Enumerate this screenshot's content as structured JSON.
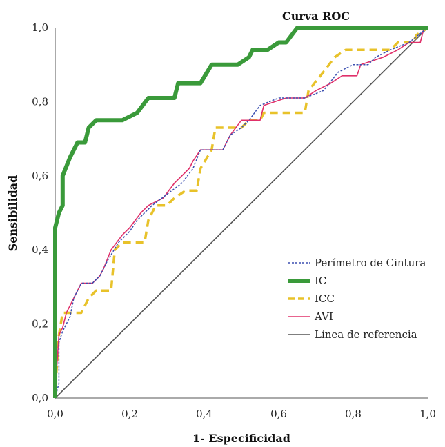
{
  "chart_data": {
    "type": "line",
    "title": "Curva ROC",
    "xlabel": "1- Especificidad",
    "ylabel": "Sensibilidad",
    "xlim": [
      0,
      1
    ],
    "ylim": [
      0,
      1
    ],
    "xticks": [
      "0,0",
      "0,2",
      "0,4",
      "0,6",
      "0,8",
      "1,0"
    ],
    "yticks": [
      "0,0",
      "0,2",
      "0,4",
      "0,6",
      "0,8",
      "1,0"
    ],
    "grid": false,
    "legend_position": "bottom-right",
    "series": [
      {
        "name": "Perímetro de Cintura",
        "color": "#3b4fb0",
        "style": "dotted",
        "points": [
          [
            0,
            0
          ],
          [
            0.01,
            0.04
          ],
          [
            0.01,
            0.15
          ],
          [
            0.02,
            0.18
          ],
          [
            0.03,
            0.2
          ],
          [
            0.04,
            0.22
          ],
          [
            0.05,
            0.27
          ],
          [
            0.07,
            0.31
          ],
          [
            0.1,
            0.31
          ],
          [
            0.12,
            0.33
          ],
          [
            0.14,
            0.37
          ],
          [
            0.17,
            0.42
          ],
          [
            0.2,
            0.45
          ],
          [
            0.22,
            0.48
          ],
          [
            0.26,
            0.52
          ],
          [
            0.3,
            0.55
          ],
          [
            0.34,
            0.58
          ],
          [
            0.37,
            0.62
          ],
          [
            0.39,
            0.67
          ],
          [
            0.45,
            0.67
          ],
          [
            0.47,
            0.71
          ],
          [
            0.5,
            0.73
          ],
          [
            0.52,
            0.75
          ],
          [
            0.55,
            0.79
          ],
          [
            0.6,
            0.81
          ],
          [
            0.67,
            0.81
          ],
          [
            0.72,
            0.83
          ],
          [
            0.76,
            0.88
          ],
          [
            0.8,
            0.9
          ],
          [
            0.84,
            0.9
          ],
          [
            0.86,
            0.92
          ],
          [
            0.9,
            0.94
          ],
          [
            0.95,
            0.96
          ],
          [
            1,
            1
          ]
        ]
      },
      {
        "name": "IC",
        "color": "#3a9a3a",
        "style": "solid",
        "points": [
          [
            0,
            0
          ],
          [
            0,
            0.46
          ],
          [
            0.01,
            0.5
          ],
          [
            0.02,
            0.52
          ],
          [
            0.02,
            0.6
          ],
          [
            0.04,
            0.65
          ],
          [
            0.06,
            0.69
          ],
          [
            0.08,
            0.69
          ],
          [
            0.09,
            0.73
          ],
          [
            0.11,
            0.75
          ],
          [
            0.18,
            0.75
          ],
          [
            0.22,
            0.77
          ],
          [
            0.25,
            0.81
          ],
          [
            0.32,
            0.81
          ],
          [
            0.33,
            0.85
          ],
          [
            0.39,
            0.85
          ],
          [
            0.42,
            0.9
          ],
          [
            0.49,
            0.9
          ],
          [
            0.52,
            0.92
          ],
          [
            0.53,
            0.94
          ],
          [
            0.57,
            0.94
          ],
          [
            0.6,
            0.96
          ],
          [
            0.62,
            0.96
          ],
          [
            0.65,
            1
          ],
          [
            1,
            1
          ]
        ]
      },
      {
        "name": "ICC",
        "color": "#e8c22a",
        "style": "dashed",
        "points": [
          [
            0,
            0
          ],
          [
            0,
            0.02
          ],
          [
            0.01,
            0.17
          ],
          [
            0.02,
            0.23
          ],
          [
            0.07,
            0.23
          ],
          [
            0.09,
            0.27
          ],
          [
            0.11,
            0.29
          ],
          [
            0.15,
            0.29
          ],
          [
            0.16,
            0.4
          ],
          [
            0.18,
            0.42
          ],
          [
            0.24,
            0.42
          ],
          [
            0.25,
            0.48
          ],
          [
            0.27,
            0.52
          ],
          [
            0.3,
            0.52
          ],
          [
            0.32,
            0.54
          ],
          [
            0.35,
            0.56
          ],
          [
            0.38,
            0.56
          ],
          [
            0.39,
            0.62
          ],
          [
            0.42,
            0.67
          ],
          [
            0.43,
            0.73
          ],
          [
            0.5,
            0.73
          ],
          [
            0.52,
            0.75
          ],
          [
            0.55,
            0.75
          ],
          [
            0.56,
            0.77
          ],
          [
            0.67,
            0.77
          ],
          [
            0.68,
            0.83
          ],
          [
            0.72,
            0.88
          ],
          [
            0.75,
            0.92
          ],
          [
            0.78,
            0.94
          ],
          [
            0.9,
            0.94
          ],
          [
            0.92,
            0.96
          ],
          [
            0.96,
            0.96
          ],
          [
            0.97,
            0.98
          ],
          [
            1,
            1
          ]
        ]
      },
      {
        "name": "AVI",
        "color": "#e0306a",
        "style": "solid-thin",
        "points": [
          [
            0,
            0
          ],
          [
            0,
            0.02
          ],
          [
            0.01,
            0.17
          ],
          [
            0.02,
            0.19
          ],
          [
            0.03,
            0.23
          ],
          [
            0.05,
            0.27
          ],
          [
            0.07,
            0.31
          ],
          [
            0.1,
            0.31
          ],
          [
            0.12,
            0.33
          ],
          [
            0.13,
            0.35
          ],
          [
            0.15,
            0.4
          ],
          [
            0.18,
            0.44
          ],
          [
            0.2,
            0.46
          ],
          [
            0.23,
            0.5
          ],
          [
            0.25,
            0.52
          ],
          [
            0.29,
            0.54
          ],
          [
            0.32,
            0.58
          ],
          [
            0.34,
            0.6
          ],
          [
            0.36,
            0.62
          ],
          [
            0.37,
            0.64
          ],
          [
            0.39,
            0.67
          ],
          [
            0.45,
            0.67
          ],
          [
            0.47,
            0.71
          ],
          [
            0.5,
            0.75
          ],
          [
            0.55,
            0.75
          ],
          [
            0.56,
            0.79
          ],
          [
            0.62,
            0.81
          ],
          [
            0.67,
            0.81
          ],
          [
            0.7,
            0.83
          ],
          [
            0.74,
            0.85
          ],
          [
            0.77,
            0.87
          ],
          [
            0.81,
            0.87
          ],
          [
            0.82,
            0.9
          ],
          [
            0.88,
            0.92
          ],
          [
            0.92,
            0.94
          ],
          [
            0.95,
            0.96
          ],
          [
            0.98,
            0.96
          ],
          [
            0.99,
            1
          ],
          [
            1,
            1
          ]
        ]
      },
      {
        "name": "Línea de referencia",
        "color": "#555555",
        "style": "solid-thin",
        "points": [
          [
            0,
            0
          ],
          [
            1,
            1
          ]
        ]
      }
    ]
  }
}
